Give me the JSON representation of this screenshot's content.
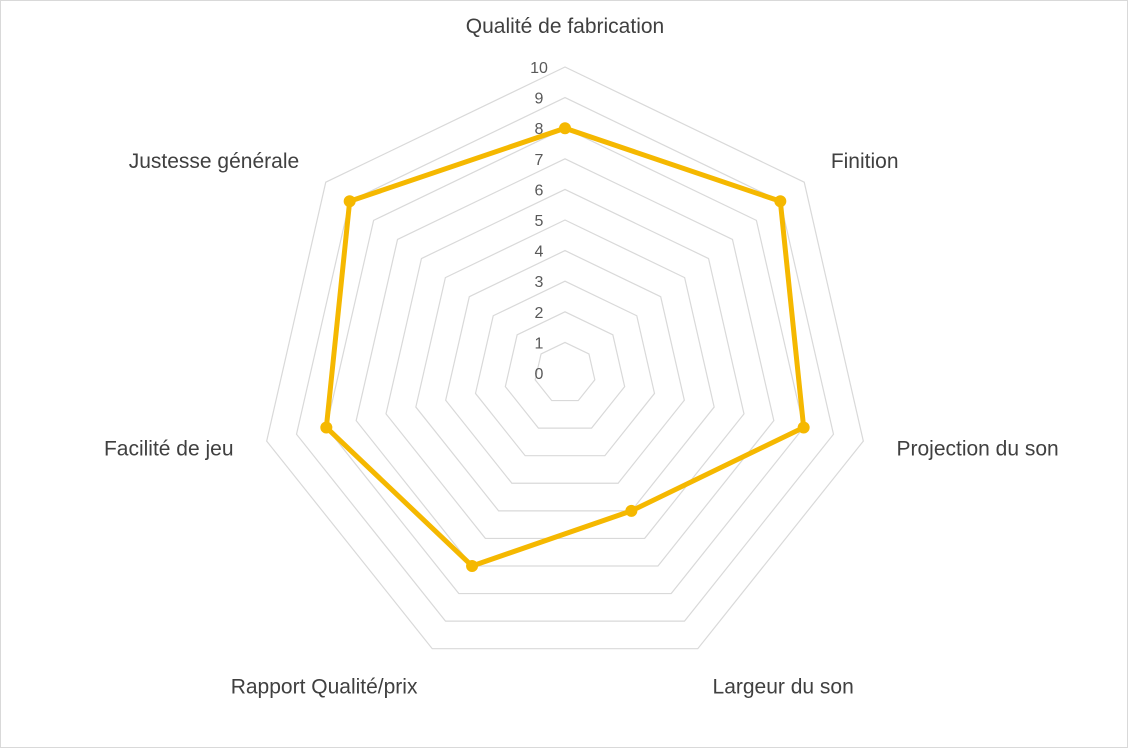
{
  "chart_data": {
    "type": "radar",
    "categories": [
      "Qualité de fabrication",
      "Finition",
      "Projection du son",
      "Largeur du son",
      "Rapport Qualité/prix",
      "Facilité de jeu",
      "Justesse générale"
    ],
    "series": [
      {
        "values": [
          8,
          9,
          8,
          5,
          7,
          8,
          9
        ],
        "color": "#f5b800"
      }
    ],
    "rlim": [
      0,
      10
    ],
    "ticks": [
      "0",
      "1",
      "2",
      "3",
      "4",
      "5",
      "6",
      "7",
      "8",
      "9",
      "10"
    ],
    "grid": true,
    "grid_color": "#d9d9d9",
    "legend": "none"
  }
}
